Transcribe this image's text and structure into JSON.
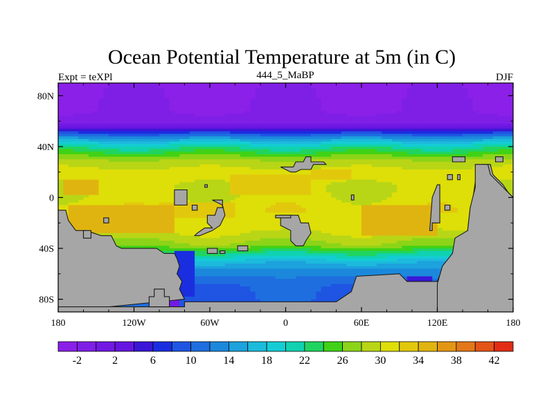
{
  "chart_data": {
    "type": "heatmap",
    "title": "Ocean Potential Temperature at 5m (in C)",
    "subtitle_left": "Expt = teXPl",
    "subtitle_center": "444_5_MaBP",
    "subtitle_right": "DJF",
    "xlim": [
      -180,
      180
    ],
    "ylim": [
      -90,
      90
    ],
    "x_ticks": [
      {
        "value": -180,
        "label": "180"
      },
      {
        "value": -120,
        "label": "120W"
      },
      {
        "value": -60,
        "label": "60W"
      },
      {
        "value": 0,
        "label": "0"
      },
      {
        "value": 60,
        "label": "60E"
      },
      {
        "value": 120,
        "label": "120E"
      },
      {
        "value": 180,
        "label": "180"
      }
    ],
    "y_ticks": [
      {
        "value": 80,
        "label": "80N"
      },
      {
        "value": 40,
        "label": "40N"
      },
      {
        "value": 0,
        "label": "0"
      },
      {
        "value": -40,
        "label": "40S"
      },
      {
        "value": -80,
        "label": "80S"
      }
    ],
    "colorbar": {
      "levels": [
        -4,
        -2,
        0,
        2,
        4,
        6,
        8,
        10,
        12,
        14,
        16,
        18,
        20,
        22,
        24,
        26,
        28,
        30,
        32,
        34,
        36,
        38,
        40,
        42,
        44
      ],
      "colors": [
        "#8b20e8",
        "#7f1fe6",
        "#7219e4",
        "#6616e0",
        "#3a16d8",
        "#1a2ee0",
        "#1f55e2",
        "#1f6ee0",
        "#1c88dc",
        "#1ca2dc",
        "#1cbbdc",
        "#14cdd4",
        "#10d2b0",
        "#20d460",
        "#40d216",
        "#8cd418",
        "#b8d616",
        "#dede08",
        "#e2c80c",
        "#e0b410",
        "#e29614",
        "#e27818",
        "#e25418",
        "#e22c16"
      ],
      "labels": [
        "-2",
        "2",
        "6",
        "10",
        "14",
        "18",
        "22",
        "26",
        "30",
        "34",
        "38",
        "42"
      ],
      "label_values": [
        -2,
        2,
        6,
        10,
        14,
        18,
        22,
        26,
        30,
        34,
        38,
        42
      ]
    },
    "zonal_profile": [
      {
        "lat": 90,
        "value": -2.5
      },
      {
        "lat": 68,
        "value": -2.0
      },
      {
        "lat": 60,
        "value": -1.0
      },
      {
        "lat": 56,
        "value": 2.0
      },
      {
        "lat": 52,
        "value": 6.0
      },
      {
        "lat": 48,
        "value": 12.0
      },
      {
        "lat": 44,
        "value": 17.0
      },
      {
        "lat": 40,
        "value": 21.0
      },
      {
        "lat": 34,
        "value": 25.0
      },
      {
        "lat": 28,
        "value": 29.0
      },
      {
        "lat": 18,
        "value": 31.0
      },
      {
        "lat": 8,
        "value": 30.0
      },
      {
        "lat": 0,
        "value": 30.5
      },
      {
        "lat": -10,
        "value": 31.5
      },
      {
        "lat": -22,
        "value": 31.0
      },
      {
        "lat": -30,
        "value": 29.5
      },
      {
        "lat": -38,
        "value": 27.0
      },
      {
        "lat": -44,
        "value": 22.0
      },
      {
        "lat": -50,
        "value": 17.0
      },
      {
        "lat": -56,
        "value": 14.0
      },
      {
        "lat": -62,
        "value": 12.0
      },
      {
        "lat": -70,
        "value": 10.0
      },
      {
        "lat": -90,
        "value": 9.0
      }
    ],
    "warm_patches": [
      {
        "lon": [
          -172,
          -88
        ],
        "lat": [
          -28,
          -6
        ],
        "value": 34
      },
      {
        "lon": [
          -175,
          -150
        ],
        "lat": [
          2,
          14
        ],
        "value": 34
      },
      {
        "lon": [
          -100,
          -40
        ],
        "lat": [
          -16,
          -4
        ],
        "value": 33
      },
      {
        "lon": [
          -45,
          20
        ],
        "lat": [
          2,
          18
        ],
        "value": 33
      },
      {
        "lon": [
          60,
          120
        ],
        "lat": [
          -30,
          -6
        ],
        "value": 34
      },
      {
        "lon": [
          20,
          50
        ],
        "lat": [
          14,
          22
        ],
        "value": 33
      }
    ],
    "cold_patches": [
      {
        "lon": [
          -86,
          -74
        ],
        "lat": [
          -78,
          -42
        ],
        "value": 6
      },
      {
        "lon": [
          -102,
          -84
        ],
        "lat": [
          -86,
          -76
        ],
        "value": 0
      },
      {
        "lon": [
          98,
          116
        ],
        "lat": [
          -68,
          -62
        ],
        "value": 4
      }
    ],
    "land": [
      {
        "name": "south-west-continent",
        "polygon": [
          [
            -180,
            -10
          ],
          [
            -174,
            -10
          ],
          [
            -172,
            -18
          ],
          [
            -166,
            -26
          ],
          [
            -158,
            -26
          ],
          [
            -146,
            -30
          ],
          [
            -138,
            -30
          ],
          [
            -134,
            -38
          ],
          [
            -130,
            -40
          ],
          [
            -102,
            -40
          ],
          [
            -96,
            -44
          ],
          [
            -88,
            -44
          ],
          [
            -86,
            -48
          ],
          [
            -84,
            -54
          ],
          [
            -86,
            -60
          ],
          [
            -82,
            -66
          ],
          [
            -84,
            -72
          ],
          [
            -80,
            -80
          ],
          [
            -180,
            -90
          ]
        ]
      },
      {
        "name": "southern-margin",
        "polygon": [
          [
            -80,
            -82
          ],
          [
            40,
            -82
          ],
          [
            52,
            -74
          ],
          [
            56,
            -62
          ],
          [
            90,
            -60
          ],
          [
            96,
            -66
          ],
          [
            120,
            -66
          ],
          [
            124,
            -56
          ],
          [
            128,
            -54
          ],
          [
            132,
            -48
          ],
          [
            134,
            -40
          ],
          [
            136,
            -32
          ],
          [
            144,
            -26
          ],
          [
            146,
            -8
          ],
          [
            148,
            -2
          ],
          [
            150,
            12
          ],
          [
            154,
            20
          ],
          [
            156,
            26
          ],
          [
            162,
            26
          ],
          [
            164,
            18
          ],
          [
            168,
            14
          ],
          [
            172,
            10
          ],
          [
            176,
            4
          ],
          [
            180,
            0
          ],
          [
            180,
            -90
          ],
          [
            -180,
            -90
          ],
          [
            -180,
            -86
          ],
          [
            -80,
            -86
          ]
        ]
      },
      {
        "name": "eastern-continent-south",
        "polygon": [
          [
            150,
            26
          ],
          [
            160,
            26
          ],
          [
            162,
            18
          ],
          [
            170,
            10
          ],
          [
            180,
            0
          ],
          [
            180,
            -90
          ],
          [
            120,
            -90
          ],
          [
            120,
            -68
          ],
          [
            124,
            -54
          ],
          [
            132,
            -44
          ],
          [
            134,
            -32
          ],
          [
            144,
            -26
          ],
          [
            146,
            -8
          ],
          [
            150,
            8
          ]
        ]
      },
      {
        "name": "south-west-islet",
        "polygon": [
          [
            -104,
            -72
          ],
          [
            -96,
            -72
          ],
          [
            -96,
            -78
          ],
          [
            -92,
            -78
          ],
          [
            -92,
            -86
          ],
          [
            -108,
            -86
          ],
          [
            -108,
            -78
          ],
          [
            -104,
            -78
          ]
        ]
      },
      {
        "name": "island-a",
        "polygon": [
          [
            -144,
            -16
          ],
          [
            -140,
            -16
          ],
          [
            -140,
            -20
          ],
          [
            -144,
            -20
          ]
        ]
      },
      {
        "name": "island-b",
        "polygon": [
          [
            -160,
            -26
          ],
          [
            -154,
            -26
          ],
          [
            -154,
            -32
          ],
          [
            -160,
            -32
          ]
        ]
      },
      {
        "name": "island-c",
        "polygon": [
          [
            -88,
            6
          ],
          [
            -78,
            6
          ],
          [
            -78,
            -6
          ],
          [
            -88,
            -6
          ]
        ]
      },
      {
        "name": "island-d",
        "polygon": [
          [
            -64,
            10
          ],
          [
            -62,
            10
          ],
          [
            -62,
            8
          ],
          [
            -64,
            8
          ]
        ]
      },
      {
        "name": "island-e",
        "polygon": [
          [
            -58,
            -2
          ],
          [
            -50,
            -2
          ],
          [
            -50,
            -8
          ],
          [
            -54,
            -8
          ],
          [
            -56,
            -14
          ],
          [
            -62,
            -14
          ],
          [
            -62,
            -20
          ],
          [
            -58,
            -24
          ],
          [
            -64,
            -24
          ],
          [
            -70,
            -28
          ],
          [
            -72,
            -30
          ],
          [
            -68,
            -30
          ],
          [
            -58,
            -26
          ],
          [
            -52,
            -22
          ],
          [
            -48,
            -14
          ],
          [
            -50,
            -6
          ]
        ]
      },
      {
        "name": "island-f",
        "polygon": [
          [
            -74,
            -6
          ],
          [
            -70,
            -6
          ],
          [
            -70,
            -10
          ],
          [
            -74,
            -10
          ]
        ]
      },
      {
        "name": "island-g",
        "polygon": [
          [
            -62,
            -40
          ],
          [
            -54,
            -40
          ],
          [
            -54,
            -44
          ],
          [
            -62,
            -44
          ]
        ]
      },
      {
        "name": "island-h",
        "polygon": [
          [
            -38,
            -38
          ],
          [
            -30,
            -38
          ],
          [
            -30,
            -42
          ],
          [
            -38,
            -42
          ]
        ]
      },
      {
        "name": "island-i",
        "polygon": [
          [
            -52,
            -42
          ],
          [
            -48,
            -42
          ],
          [
            -48,
            -44
          ],
          [
            -52,
            -44
          ]
        ]
      },
      {
        "name": "island-j",
        "polygon": [
          [
            -4,
            -14
          ],
          [
            10,
            -14
          ],
          [
            12,
            -20
          ],
          [
            18,
            -20
          ],
          [
            20,
            -28
          ],
          [
            16,
            -34
          ],
          [
            14,
            -38
          ],
          [
            8,
            -38
          ],
          [
            4,
            -34
          ],
          [
            4,
            -26
          ],
          [
            -4,
            -22
          ]
        ]
      },
      {
        "name": "island-k",
        "polygon": [
          [
            -4,
            24
          ],
          [
            6,
            24
          ],
          [
            8,
            28
          ],
          [
            14,
            28
          ],
          [
            16,
            32
          ],
          [
            20,
            32
          ],
          [
            20,
            28
          ],
          [
            30,
            28
          ],
          [
            32,
            26
          ],
          [
            22,
            26
          ],
          [
            20,
            22
          ],
          [
            12,
            22
          ],
          [
            8,
            20
          ],
          [
            4,
            20
          ]
        ]
      },
      {
        "name": "island-l",
        "polygon": [
          [
            52,
            2
          ],
          [
            54,
            2
          ],
          [
            54,
            -2
          ],
          [
            52,
            -2
          ]
        ]
      },
      {
        "name": "island-m",
        "polygon": [
          [
            120,
            10
          ],
          [
            122,
            10
          ],
          [
            122,
            -20
          ],
          [
            116,
            -20
          ],
          [
            116,
            -26
          ],
          [
            114,
            -26
          ],
          [
            116,
            0
          ]
        ]
      },
      {
        "name": "island-n",
        "polygon": [
          [
            126,
            -10
          ],
          [
            130,
            -10
          ],
          [
            130,
            -6
          ],
          [
            126,
            -6
          ]
        ]
      },
      {
        "name": "island-o",
        "polygon": [
          [
            132,
            32
          ],
          [
            142,
            32
          ],
          [
            142,
            28
          ],
          [
            132,
            28
          ]
        ]
      },
      {
        "name": "island-p",
        "polygon": [
          [
            128,
            18
          ],
          [
            132,
            18
          ],
          [
            132,
            14
          ],
          [
            128,
            14
          ]
        ]
      },
      {
        "name": "island-q",
        "polygon": [
          [
            136,
            18
          ],
          [
            138,
            18
          ],
          [
            138,
            14
          ],
          [
            136,
            14
          ]
        ]
      },
      {
        "name": "island-r",
        "polygon": [
          [
            166,
            32
          ],
          [
            172,
            32
          ],
          [
            172,
            28
          ],
          [
            166,
            28
          ]
        ]
      },
      {
        "name": "island-s",
        "polygon": [
          [
            -8,
            -16
          ],
          [
            4,
            -16
          ],
          [
            4,
            -14
          ],
          [
            -8,
            -14
          ]
        ]
      }
    ]
  }
}
